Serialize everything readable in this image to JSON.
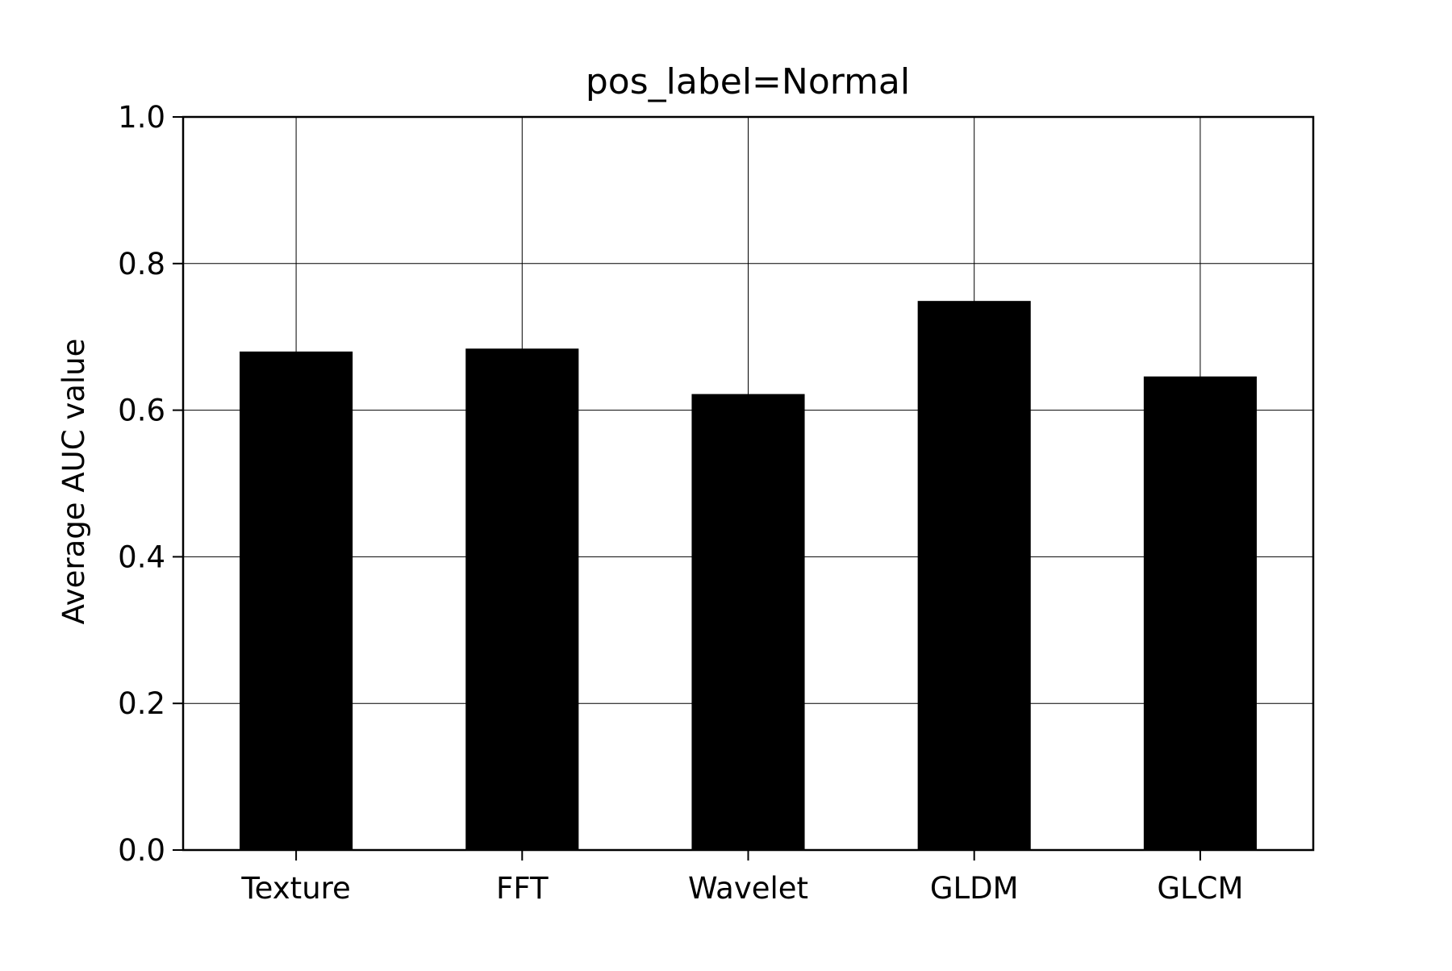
{
  "chart_data": {
    "type": "bar",
    "title": "pos_label=Normal",
    "xlabel": "",
    "ylabel": "Average AUC value",
    "categories": [
      "Texture",
      "FFT",
      "Wavelet",
      "GLDM",
      "GLCM"
    ],
    "values": [
      0.68,
      0.684,
      0.622,
      0.749,
      0.646
    ],
    "ylim": [
      0,
      1.0
    ],
    "yticks": [
      "0.0",
      "0.2",
      "0.4",
      "0.6",
      "0.8",
      "1.0"
    ],
    "grid": true,
    "legend": "none",
    "bar_color": "#000000"
  }
}
